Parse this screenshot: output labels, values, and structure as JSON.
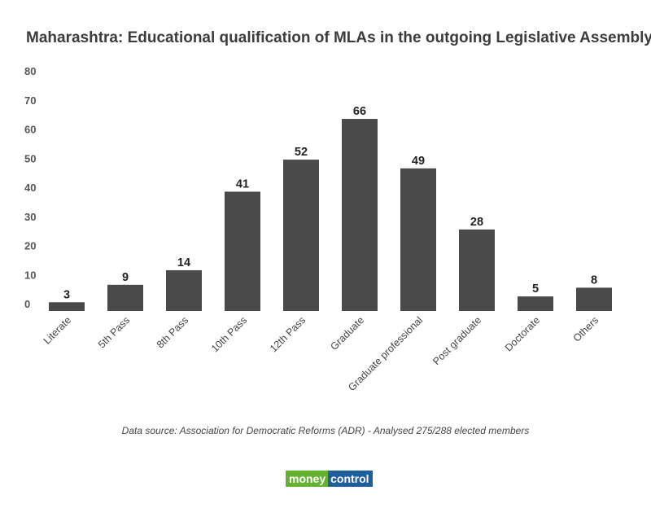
{
  "title": "Maharashtra: Educational qualification of MLAs in the outgoing Legislative Assembly",
  "source_note": "Data source: Association for Democratic Reforms (ADR) - Analysed 275/288 elected members",
  "logo": {
    "part1": "money",
    "part2": "control",
    "color1": "#64b22f",
    "color2": "#1f5e9c"
  },
  "bar_color": "#4a4a4a",
  "chart_data": {
    "type": "bar",
    "title": "Maharashtra: Educational qualification of MLAs in the outgoing Legislative Assembly",
    "categories": [
      "Literate",
      "5th Pass",
      "8th Pass",
      "10th Pass",
      "12th Pass",
      "Graduate",
      "Graduate professional",
      "Post graduate",
      "Doctorate",
      "Others"
    ],
    "values": [
      3,
      9,
      14,
      41,
      52,
      66,
      49,
      28,
      5,
      8
    ],
    "yticks": [
      0,
      10,
      20,
      30,
      40,
      50,
      60,
      70,
      80
    ],
    "ylim": [
      0,
      80
    ],
    "xlabel": "",
    "ylabel": "",
    "grid": false,
    "legend": "none"
  }
}
